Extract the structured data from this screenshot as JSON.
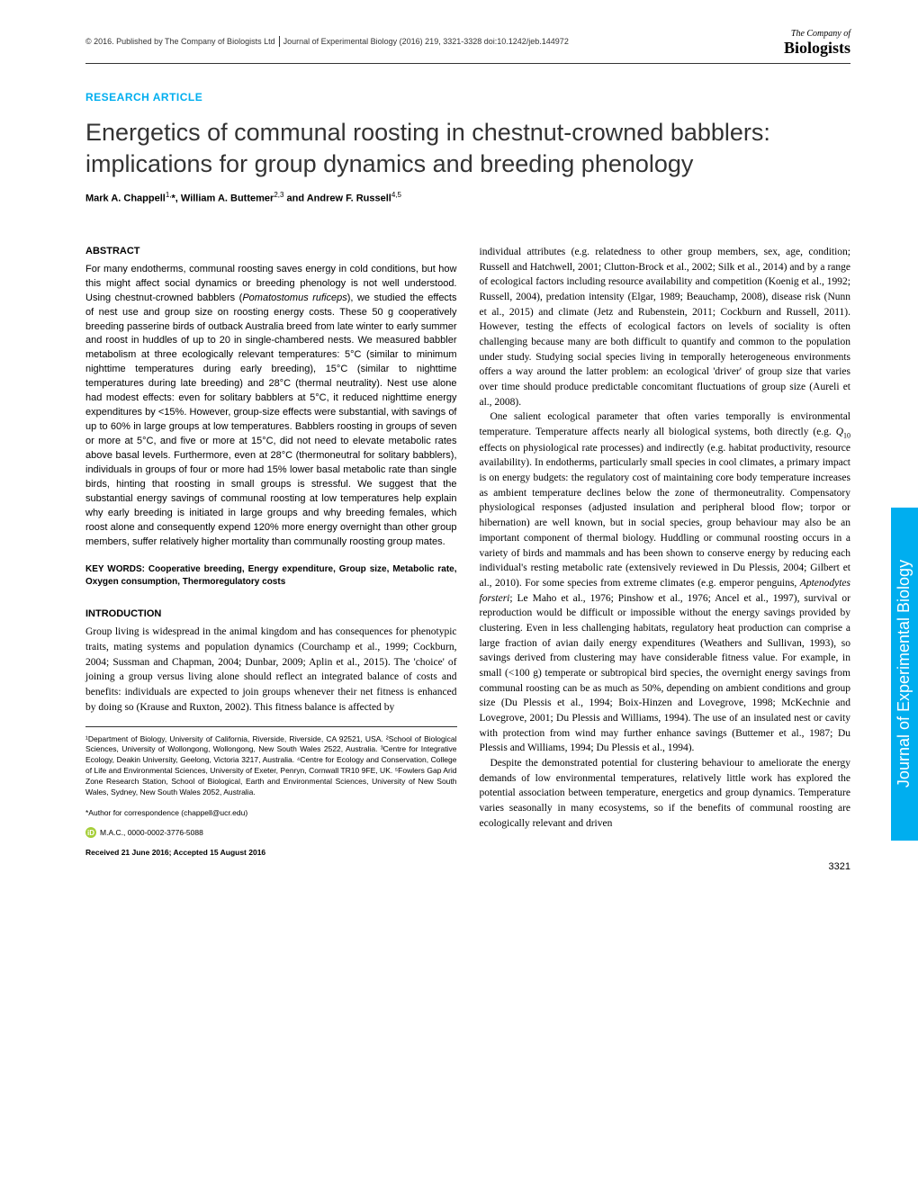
{
  "header": {
    "copyright": "© 2016. Published by The Company of Biologists Ltd",
    "journal": "Journal of Experimental Biology (2016) 219, 3321-3328 doi:10.1242/jeb.144972"
  },
  "logo": {
    "line1": "The Company of",
    "line2": "Biologists"
  },
  "article_type": "RESEARCH ARTICLE",
  "title": "Energetics of communal roosting in chestnut-crowned babblers: implications for group dynamics and breeding phenology",
  "authors_html": "Mark A. Chappell<sup>1,</sup>*, William A. Buttemer<sup>2,3</sup> and Andrew F. Russell<sup>4,5</sup>",
  "abstract": {
    "heading": "ABSTRACT",
    "text": "For many endotherms, communal roosting saves energy in cold conditions, but how this might affect social dynamics or breeding phenology is not well understood. Using chestnut-crowned babblers (Pomatostomus ruficeps), we studied the effects of nest use and group size on roosting energy costs. These 50 g cooperatively breeding passerine birds of outback Australia breed from late winter to early summer and roost in huddles of up to 20 in single-chambered nests. We measured babbler metabolism at three ecologically relevant temperatures: 5°C (similar to minimum nighttime temperatures during early breeding), 15°C (similar to nighttime temperatures during late breeding) and 28°C (thermal neutrality). Nest use alone had modest effects: even for solitary babblers at 5°C, it reduced nighttime energy expenditures by <15%. However, group-size effects were substantial, with savings of up to 60% in large groups at low temperatures. Babblers roosting in groups of seven or more at 5°C, and five or more at 15°C, did not need to elevate metabolic rates above basal levels. Furthermore, even at 28°C (thermoneutral for solitary babblers), individuals in groups of four or more had 15% lower basal metabolic rate than single birds, hinting that roosting in small groups is stressful. We suggest that the substantial energy savings of communal roosting at low temperatures help explain why early breeding is initiated in large groups and why breeding females, which roost alone and consequently expend 120% more energy overnight than other group members, suffer relatively higher mortality than communally roosting group mates."
  },
  "keywords": {
    "label": "KEY WORDS: Cooperative breeding, Energy expenditure, Group size, Metabolic rate, Oxygen consumption, Thermoregulatory costs"
  },
  "introduction": {
    "heading": "INTRODUCTION",
    "text": "Group living is widespread in the animal kingdom and has consequences for phenotypic traits, mating systems and population dynamics (Courchamp et al., 1999; Cockburn, 2004; Sussman and Chapman, 2004; Dunbar, 2009; Aplin et al., 2015). The 'choice' of joining a group versus living alone should reflect an integrated balance of costs and benefits: individuals are expected to join groups whenever their net fitness is enhanced by doing so (Krause and Ruxton, 2002). This fitness balance is affected by"
  },
  "affiliations": "¹Department of Biology, University of California, Riverside, Riverside, CA 92521, USA. ²School of Biological Sciences, University of Wollongong, Wollongong, New South Wales 2522, Australia. ³Centre for Integrative Ecology, Deakin University, Geelong, Victoria 3217, Australia. ⁴Centre for Ecology and Conservation, College of Life and Environmental Sciences, University of Exeter, Penryn, Cornwall TR10 9FE, UK. ⁵Fowlers Gap Arid Zone Research Station, School of Biological, Earth and Environmental Sciences, University of New South Wales, Sydney, New South Wales 2052, Australia.",
  "correspondence": "*Author for correspondence (chappell@ucr.edu)",
  "orcid": "M.A.C., 0000-0002-3776-5088",
  "dates": "Received 21 June 2016; Accepted 15 August 2016",
  "right_column": {
    "p1": "individual attributes (e.g. relatedness to other group members, sex, age, condition; Russell and Hatchwell, 2001; Clutton-Brock et al., 2002; Silk et al., 2014) and by a range of ecological factors including resource availability and competition (Koenig et al., 1992; Russell, 2004), predation intensity (Elgar, 1989; Beauchamp, 2008), disease risk (Nunn et al., 2015) and climate (Jetz and Rubenstein, 2011; Cockburn and Russell, 2011). However, testing the effects of ecological factors on levels of sociality is often challenging because many are both difficult to quantify and common to the population under study. Studying social species living in temporally heterogeneous environments offers a way around the latter problem: an ecological 'driver' of group size that varies over time should produce predictable concomitant fluctuations of group size (Aureli et al., 2008).",
    "p2": "One salient ecological parameter that often varies temporally is environmental temperature. Temperature affects nearly all biological systems, both directly (e.g. Q₁₀ effects on physiological rate processes) and indirectly (e.g. habitat productivity, resource availability). In endotherms, particularly small species in cool climates, a primary impact is on energy budgets: the regulatory cost of maintaining core body temperature increases as ambient temperature declines below the zone of thermoneutrality. Compensatory physiological responses (adjusted insulation and peripheral blood flow; torpor or hibernation) are well known, but in social species, group behaviour may also be an important component of thermal biology. Huddling or communal roosting occurs in a variety of birds and mammals and has been shown to conserve energy by reducing each individual's resting metabolic rate (extensively reviewed in Du Plessis, 2004; Gilbert et al., 2010). For some species from extreme climates (e.g. emperor penguins, Aptenodytes forsteri; Le Maho et al., 1976; Pinshow et al., 1976; Ancel et al., 1997), survival or reproduction would be difficult or impossible without the energy savings provided by clustering. Even in less challenging habitats, regulatory heat production can comprise a large fraction of avian daily energy expenditures (Weathers and Sullivan, 1993), so savings derived from clustering may have considerable fitness value. For example, in small (<100 g) temperate or subtropical bird species, the overnight energy savings from communal roosting can be as much as 50%, depending on ambient conditions and group size (Du Plessis et al., 1994; Boix-Hinzen and Lovegrove, 1998; McKechnie and Lovegrove, 2001; Du Plessis and Williams, 1994). The use of an insulated nest or cavity with protection from wind may further enhance savings (Buttemer et al., 1987; Du Plessis and Williams, 1994; Du Plessis et al., 1994).",
    "p3": "Despite the demonstrated potential for clustering behaviour to ameliorate the energy demands of low environmental temperatures, relatively little work has explored the potential association between temperature, energetics and group dynamics. Temperature varies seasonally in many ecosystems, so if the benefits of communal roosting are ecologically relevant and driven"
  },
  "side_tab": "Journal of Experimental Biology",
  "page_number": "3321",
  "colors": {
    "accent": "#00aeef",
    "text": "#333333",
    "orcid": "#a6ce39"
  }
}
